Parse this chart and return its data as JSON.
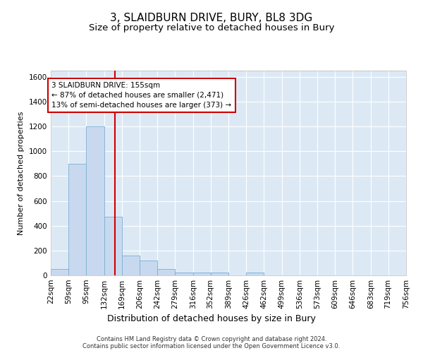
{
  "title": "3, SLAIDBURN DRIVE, BURY, BL8 3DG",
  "subtitle": "Size of property relative to detached houses in Bury",
  "xlabel": "Distribution of detached houses by size in Bury",
  "ylabel": "Number of detached properties",
  "footnote": "Contains HM Land Registry data © Crown copyright and database right 2024.\nContains public sector information licensed under the Open Government Licence v3.0.",
  "bin_edges": [
    22,
    59,
    95,
    132,
    169,
    206,
    242,
    279,
    316,
    352,
    389,
    426,
    462,
    499,
    536,
    573,
    609,
    646,
    683,
    719,
    756
  ],
  "bin_counts": [
    50,
    900,
    1200,
    470,
    160,
    120,
    50,
    25,
    20,
    20,
    0,
    25,
    0,
    0,
    0,
    0,
    0,
    0,
    0,
    0
  ],
  "bar_color": "#c8d9ef",
  "bar_edge_color": "#7aadd4",
  "background_color": "#dce9f5",
  "grid_color": "#ffffff",
  "property_size": 155,
  "vline_color": "#cc0000",
  "annotation_text": "3 SLAIDBURN DRIVE: 155sqm\n← 87% of detached houses are smaller (2,471)\n13% of semi-detached houses are larger (373) →",
  "annotation_box_color": "#cc0000",
  "ylim": [
    0,
    1650
  ],
  "yticks": [
    0,
    200,
    400,
    600,
    800,
    1000,
    1200,
    1400,
    1600
  ],
  "title_fontsize": 11,
  "subtitle_fontsize": 9.5,
  "xlabel_fontsize": 9,
  "ylabel_fontsize": 8,
  "tick_fontsize": 7.5,
  "annotation_fontsize": 7.5,
  "footnote_fontsize": 6
}
